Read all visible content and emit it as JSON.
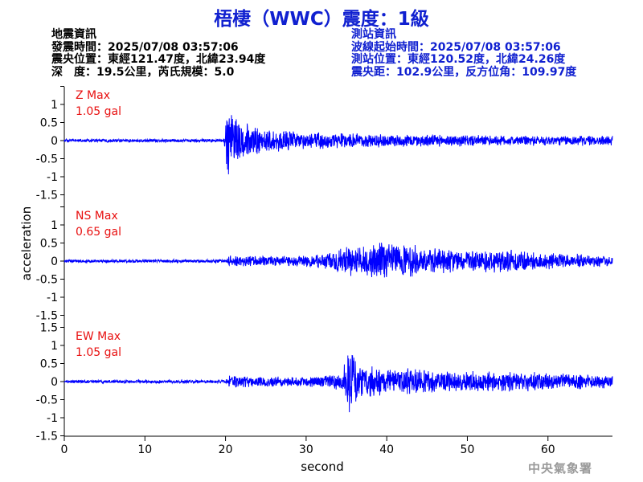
{
  "header": {
    "title": "梧棲（WWC）震度：1級"
  },
  "earthquake_info": {
    "heading": "地震資訊",
    "time": "發震時間：2025/07/08 03:57:06",
    "location": "震央位置：東經121.47度，北緯23.94度",
    "depth_magnitude": "深　度：19.5公里，芮氏規模：5.0"
  },
  "station_info": {
    "heading": "測站資訊",
    "wave_start": "波線起始時間：2025/07/08 03:57:06",
    "location": "測站位置：東經120.52度，北緯24.26度",
    "distance": "震央距：102.9公里，反方位角：109.97度"
  },
  "credit": "中央氣象署",
  "colors": {
    "title": "#1020d0",
    "trace": "#0000ff",
    "max_label": "#e81010",
    "info": "#000000"
  },
  "chart_data": {
    "type": "line",
    "xlabel": "second",
    "ylabel": "acceleration",
    "xlim": [
      0,
      68
    ],
    "xticks": [
      0,
      10,
      20,
      30,
      40,
      50,
      60
    ],
    "ylim": [
      -1.5,
      1.5
    ],
    "yticks": [
      1.5,
      1,
      0.5,
      0,
      -0.5,
      -1,
      -1.5
    ],
    "ytick_labels": [
      "",
      "1",
      "0.5",
      "0",
      "-0.5",
      "-1",
      "-1.5"
    ],
    "ytick_labels_top": [
      "1.5",
      "1",
      "0.5",
      "0",
      "-0.5",
      "-1",
      "-1.5"
    ],
    "ytick_labels_last": [
      "",
      "1",
      "0.5",
      "0",
      "-0.5",
      "-1",
      "-1.5"
    ],
    "series": [
      {
        "name": "Z",
        "max_label": "Z Max",
        "max_value": "1.05 gal",
        "envelope": [
          [
            0,
            0.05
          ],
          [
            19.8,
            0.05
          ],
          [
            20.3,
            1.05
          ],
          [
            21,
            0.8
          ],
          [
            23,
            0.5
          ],
          [
            25,
            0.35
          ],
          [
            30,
            0.25
          ],
          [
            40,
            0.2
          ],
          [
            55,
            0.15
          ],
          [
            68,
            0.15
          ]
        ]
      },
      {
        "name": "NS",
        "max_label": "NS Max",
        "max_value": "0.65 gal",
        "envelope": [
          [
            0,
            0.05
          ],
          [
            20,
            0.05
          ],
          [
            20.5,
            0.18
          ],
          [
            26,
            0.15
          ],
          [
            32,
            0.2
          ],
          [
            35.5,
            0.45
          ],
          [
            38,
            0.5
          ],
          [
            39.5,
            0.65
          ],
          [
            42,
            0.55
          ],
          [
            45,
            0.4
          ],
          [
            50,
            0.3
          ],
          [
            56,
            0.35
          ],
          [
            60,
            0.25
          ],
          [
            68,
            0.15
          ]
        ]
      },
      {
        "name": "EW",
        "max_label": "EW Max",
        "max_value": "1.05 gal",
        "envelope": [
          [
            0,
            0.05
          ],
          [
            20,
            0.05
          ],
          [
            20.5,
            0.18
          ],
          [
            30,
            0.15
          ],
          [
            34.5,
            0.25
          ],
          [
            35.3,
            1.05
          ],
          [
            36.5,
            0.5
          ],
          [
            40,
            0.4
          ],
          [
            45,
            0.35
          ],
          [
            50,
            0.3
          ],
          [
            55,
            0.3
          ],
          [
            60,
            0.25
          ],
          [
            68,
            0.2
          ]
        ]
      }
    ]
  }
}
